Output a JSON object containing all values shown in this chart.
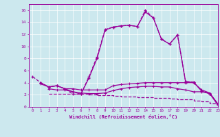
{
  "background_color": "#cce8ee",
  "line_color": "#990099",
  "xlim": [
    -0.5,
    23
  ],
  "ylim": [
    0,
    17
  ],
  "xticks": [
    0,
    1,
    2,
    3,
    4,
    5,
    6,
    7,
    8,
    9,
    10,
    11,
    12,
    13,
    14,
    15,
    16,
    17,
    18,
    19,
    20,
    21,
    22,
    23
  ],
  "yticks": [
    0,
    2,
    4,
    6,
    8,
    10,
    12,
    14,
    16
  ],
  "xlabel": "Windchill (Refroidissement éolien,°C)",
  "series1_x": [
    0,
    1,
    2,
    3,
    4,
    5,
    6,
    7,
    8,
    9,
    10,
    11,
    12,
    13,
    14,
    15,
    16,
    17,
    18,
    19,
    20,
    21,
    22,
    23
  ],
  "series1_y": [
    5,
    4,
    3.3,
    3.5,
    3.0,
    2.1,
    2.1,
    5.0,
    8.3,
    12.8,
    13.2,
    13.4,
    13.5,
    13.3,
    16.0,
    14.7,
    11.2,
    10.4,
    11.9,
    4.2,
    4.1,
    2.6,
    2.2,
    0.5
  ],
  "series2_x": [
    1,
    2,
    3,
    4,
    5,
    6,
    7,
    8,
    9,
    10,
    11,
    12,
    13,
    14,
    15,
    16,
    17,
    18,
    19,
    20,
    21,
    22,
    23
  ],
  "series2_y": [
    4.0,
    3.3,
    3.5,
    3.0,
    2.5,
    2.1,
    4.8,
    8.0,
    12.7,
    13.2,
    13.4,
    13.5,
    13.3,
    15.7,
    14.7,
    11.2,
    10.4,
    11.9,
    4.1,
    4.1,
    2.6,
    2.2,
    0.5
  ],
  "series3_x": [
    1,
    2,
    3,
    4,
    5,
    6,
    7,
    8,
    9,
    10,
    11,
    12,
    13,
    14,
    15,
    16,
    17,
    18,
    19,
    20,
    21,
    22,
    23
  ],
  "series3_y": [
    3.8,
    3.3,
    3.5,
    3.0,
    3.0,
    2.8,
    2.8,
    2.8,
    2.8,
    3.5,
    3.7,
    3.8,
    3.9,
    4.0,
    4.0,
    4.0,
    4.0,
    4.0,
    4.0,
    4.0,
    2.8,
    2.3,
    0.5
  ],
  "series4_x": [
    2,
    3,
    4,
    5,
    6,
    7,
    8,
    9,
    10,
    11,
    12,
    13,
    14,
    15,
    16,
    17,
    18,
    19,
    20,
    21,
    22,
    23
  ],
  "series4_y": [
    3.0,
    2.8,
    2.8,
    2.5,
    2.3,
    2.2,
    2.2,
    2.3,
    2.7,
    3.0,
    3.2,
    3.3,
    3.4,
    3.4,
    3.3,
    3.3,
    3.0,
    2.8,
    2.5,
    2.5,
    2.2,
    0.3
  ],
  "series5_x": [
    2,
    3,
    4,
    5,
    6,
    7,
    8,
    9,
    10,
    11,
    12,
    13,
    14,
    15,
    16,
    17,
    18,
    19,
    20,
    21,
    22,
    23
  ],
  "series5_y": [
    2.2,
    2.2,
    2.2,
    2.2,
    2.2,
    2.0,
    1.9,
    1.9,
    1.8,
    1.7,
    1.7,
    1.6,
    1.6,
    1.5,
    1.5,
    1.4,
    1.3,
    1.2,
    1.0,
    0.9,
    0.6,
    0.3
  ]
}
